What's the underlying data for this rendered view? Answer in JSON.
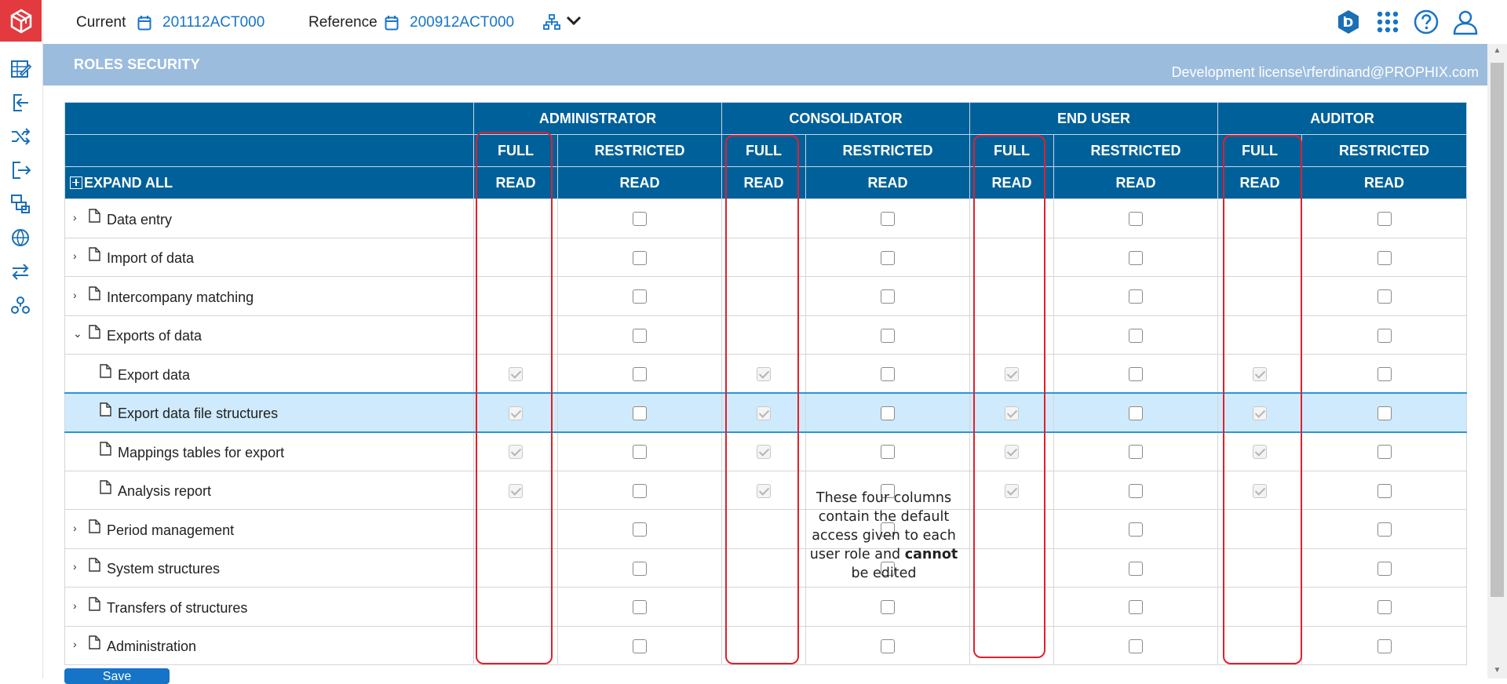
{
  "topbar": {
    "current_label": "Current",
    "current_value": "201112ACT000",
    "reference_label": "Reference",
    "reference_value": "200912ACT000"
  },
  "header": {
    "title": "ROLES SECURITY",
    "license": "Development license\\rferdinand@PROPHIX.com"
  },
  "table": {
    "expand_all": "EXPAND ALL",
    "roles": [
      "ADMINISTRATOR",
      "CONSOLIDATOR",
      "END USER",
      "AUDITOR"
    ],
    "sub": {
      "full": "FULL",
      "restricted": "RESTRICTED",
      "read": "READ"
    },
    "rows": [
      {
        "label": "Data entry",
        "caret": "›"
      },
      {
        "label": "Import of data",
        "caret": "›"
      },
      {
        "label": "Intercompany matching",
        "caret": "›"
      },
      {
        "label": "Exports of data",
        "caret": "⌄"
      },
      {
        "label": "Export data"
      },
      {
        "label": "Export data file structures"
      },
      {
        "label": "Mappings tables for export"
      },
      {
        "label": "Analysis report"
      },
      {
        "label": "Period management",
        "caret": "›"
      },
      {
        "label": "System structures",
        "caret": "›"
      },
      {
        "label": "Transfers of structures",
        "caret": "›"
      },
      {
        "label": "Administration",
        "caret": "›"
      }
    ]
  },
  "annotation": {
    "pre": "These four columns contain the default access given to each user role and ",
    "bold": "cannot",
    "post": " be edited"
  },
  "save_label": "Save",
  "colors": {
    "header_blue": "#00609a",
    "band": "#9bbcdd",
    "accent": "#1774c9",
    "highlight": "#e0202c",
    "logo": "#e23a3f"
  }
}
